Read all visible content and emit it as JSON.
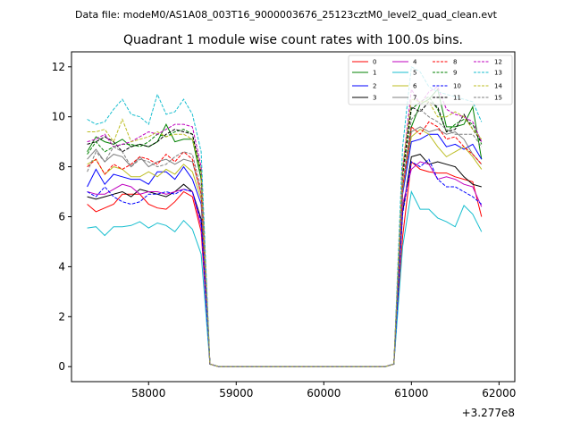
{
  "suptitle": "Data file: modeM0/AS1A08_003T16_9000003676_25123cztM0_level2_quad_clean.evt",
  "chart_data": {
    "type": "line",
    "title": "Quadrant 1 module wise count rates with 100.0s bins.",
    "xlabel": "",
    "ylabel": "",
    "x_offset_label": "+3.277e8",
    "xlim": [
      57120,
      62180
    ],
    "ylim": [
      -0.6,
      12.6
    ],
    "xticks": [
      58000,
      59000,
      60000,
      61000,
      62000
    ],
    "xtick_labels": [
      "58000",
      "59000",
      "60000",
      "61000",
      "62000"
    ],
    "yticks": [
      0,
      2,
      4,
      6,
      8,
      10,
      12
    ],
    "ytick_labels": [
      "0",
      "2",
      "4",
      "6",
      "8",
      "10",
      "12"
    ],
    "grid": false,
    "legend_position": "top-right",
    "x": [
      57300,
      57400,
      57500,
      57600,
      57700,
      57800,
      57900,
      58000,
      58100,
      58200,
      58300,
      58400,
      58500,
      58600,
      58700,
      58800,
      58900,
      59000,
      59100,
      59200,
      59300,
      59400,
      59500,
      59600,
      59700,
      59800,
      59900,
      60000,
      60100,
      60200,
      60300,
      60400,
      60500,
      60600,
      60700,
      60800,
      60900,
      61000,
      61100,
      61200,
      61300,
      61400,
      61500,
      61600,
      61700,
      61800
    ],
    "series": [
      {
        "name": "0",
        "color": "#ff0000",
        "dash": "solid",
        "values": [
          6.5,
          6.2,
          6.35,
          6.5,
          6.9,
          6.9,
          6.9,
          6.5,
          6.35,
          6.3,
          6.6,
          7.0,
          6.8,
          5.4,
          0.1,
          0,
          0,
          0,
          0,
          0,
          0,
          0,
          0,
          0,
          0,
          0,
          0,
          0,
          0,
          0,
          0,
          0,
          0,
          0,
          0,
          0.1,
          5.2,
          8.2,
          7.9,
          7.8,
          7.75,
          7.75,
          7.6,
          7.5,
          7.4,
          6.0
        ]
      },
      {
        "name": "1",
        "color": "#008000",
        "dash": "solid",
        "values": [
          8.6,
          9.2,
          9.0,
          8.9,
          9.1,
          8.8,
          8.9,
          8.8,
          9.0,
          9.7,
          9.0,
          9.1,
          9.1,
          7.5,
          0.1,
          0,
          0,
          0,
          0,
          0,
          0,
          0,
          0,
          0,
          0,
          0,
          0,
          0,
          0,
          0,
          0,
          0,
          0,
          0,
          0,
          0.1,
          7.0,
          9.6,
          10.5,
          10.7,
          11.1,
          9.6,
          9.6,
          9.7,
          10.4,
          8.3
        ]
      },
      {
        "name": "2",
        "color": "#0000ff",
        "dash": "solid",
        "values": [
          7.2,
          7.9,
          7.3,
          7.7,
          7.6,
          7.5,
          7.5,
          7.3,
          7.8,
          7.8,
          7.5,
          8.0,
          7.5,
          6.5,
          0.1,
          0,
          0,
          0,
          0,
          0,
          0,
          0,
          0,
          0,
          0,
          0,
          0,
          0,
          0,
          0,
          0,
          0,
          0,
          0,
          0,
          0.1,
          6.9,
          9.0,
          9.1,
          9.3,
          9.3,
          8.8,
          8.9,
          8.7,
          8.9,
          8.3
        ]
      },
      {
        "name": "3",
        "color": "#000000",
        "dash": "solid",
        "values": [
          6.8,
          6.7,
          6.8,
          6.9,
          7.0,
          6.8,
          7.1,
          7.0,
          6.9,
          6.8,
          7.0,
          7.3,
          7.0,
          5.9,
          0.1,
          0,
          0,
          0,
          0,
          0,
          0,
          0,
          0,
          0,
          0,
          0,
          0,
          0,
          0,
          0,
          0,
          0,
          0,
          0,
          0,
          0.1,
          6.2,
          8.4,
          8.5,
          8.1,
          8.2,
          8.1,
          8.0,
          7.6,
          7.3,
          7.2
        ]
      },
      {
        "name": "4",
        "color": "#bf00bf",
        "dash": "solid",
        "values": [
          7.0,
          6.9,
          6.9,
          7.1,
          7.3,
          7.2,
          6.9,
          7.0,
          7.0,
          6.9,
          7.0,
          7.1,
          7.0,
          5.6,
          0.1,
          0,
          0,
          0,
          0,
          0,
          0,
          0,
          0,
          0,
          0,
          0,
          0,
          0,
          0,
          0,
          0,
          0,
          0,
          0,
          0,
          0.1,
          6.5,
          7.9,
          8.2,
          8.1,
          7.5,
          7.6,
          7.5,
          7.3,
          7.2,
          6.4
        ]
      },
      {
        "name": "5",
        "color": "#17becf",
        "dash": "solid",
        "values": [
          5.55,
          5.6,
          5.25,
          5.6,
          5.6,
          5.65,
          5.8,
          5.55,
          5.75,
          5.65,
          5.4,
          5.85,
          5.5,
          4.5,
          0.1,
          0,
          0,
          0,
          0,
          0,
          0,
          0,
          0,
          0,
          0,
          0,
          0,
          0,
          0,
          0,
          0,
          0,
          0,
          0,
          0,
          0.1,
          4.8,
          7.0,
          6.3,
          6.3,
          5.95,
          5.8,
          5.6,
          6.45,
          6.1,
          5.4
        ]
      },
      {
        "name": "6",
        "color": "#bcbd22",
        "dash": "solid",
        "values": [
          8.1,
          8.3,
          7.7,
          8.0,
          7.9,
          7.6,
          7.6,
          7.8,
          7.6,
          7.9,
          7.7,
          8.1,
          7.8,
          6.7,
          0.1,
          0,
          0,
          0,
          0,
          0,
          0,
          0,
          0,
          0,
          0,
          0,
          0,
          0,
          0,
          0,
          0,
          0,
          0,
          0,
          0,
          0.1,
          7.2,
          9.2,
          9.5,
          9.3,
          8.8,
          8.4,
          8.6,
          8.8,
          8.4,
          7.9
        ]
      },
      {
        "name": "7",
        "color": "#7f7f7f",
        "dash": "solid",
        "values": [
          8.3,
          8.7,
          8.2,
          8.5,
          8.4,
          8.0,
          8.4,
          8.0,
          8.2,
          8.3,
          8.1,
          8.3,
          8.2,
          6.9,
          0.1,
          0,
          0,
          0,
          0,
          0,
          0,
          0,
          0,
          0,
          0,
          0,
          0,
          0,
          0,
          0,
          0,
          0,
          0,
          0,
          0,
          0.1,
          7.0,
          9.4,
          9.6,
          9.4,
          9.5,
          9.3,
          9.4,
          9.1,
          8.5,
          8.1
        ]
      },
      {
        "name": "8",
        "color": "#ff0000",
        "dash": "dashed",
        "values": [
          8.0,
          8.3,
          7.7,
          8.1,
          7.9,
          8.1,
          8.4,
          8.3,
          8.1,
          8.5,
          8.2,
          8.6,
          8.3,
          6.9,
          0.1,
          0,
          0,
          0,
          0,
          0,
          0,
          0,
          0,
          0,
          0,
          0,
          0,
          0,
          0,
          0,
          0,
          0,
          0,
          0,
          0,
          0.1,
          7.2,
          9.6,
          9.3,
          9.8,
          9.6,
          9.1,
          9.2,
          8.8,
          8.5,
          8.1
        ]
      },
      {
        "name": "9",
        "color": "#008000",
        "dash": "dashed",
        "values": [
          8.5,
          9.0,
          8.6,
          8.8,
          8.9,
          8.9,
          8.8,
          9.0,
          9.3,
          9.2,
          9.4,
          9.5,
          9.3,
          7.7,
          0.1,
          0,
          0,
          0,
          0,
          0,
          0,
          0,
          0,
          0,
          0,
          0,
          0,
          0,
          0,
          0,
          0,
          0,
          0,
          0,
          0,
          0.1,
          7.6,
          10.3,
          10.6,
          10.8,
          10.3,
          9.4,
          9.7,
          9.9,
          9.7,
          8.9
        ]
      },
      {
        "name": "10",
        "color": "#0000ff",
        "dash": "dashed",
        "values": [
          7.0,
          6.8,
          7.2,
          6.8,
          6.6,
          6.5,
          6.6,
          6.9,
          6.9,
          7.0,
          6.9,
          7.1,
          7.0,
          5.8,
          0.1,
          0,
          0,
          0,
          0,
          0,
          0,
          0,
          0,
          0,
          0,
          0,
          0,
          0,
          0,
          0,
          0,
          0,
          0,
          0,
          0,
          0.1,
          6.1,
          8.2,
          8.0,
          8.3,
          7.5,
          7.2,
          7.2,
          7.0,
          6.8,
          6.5
        ]
      },
      {
        "name": "11",
        "color": "#000000",
        "dash": "dashed",
        "values": [
          8.9,
          9.0,
          9.2,
          9.0,
          8.6,
          8.8,
          8.9,
          8.8,
          9.0,
          9.3,
          9.5,
          9.4,
          9.3,
          7.8,
          0.1,
          0,
          0,
          0,
          0,
          0,
          0,
          0,
          0,
          0,
          0,
          0,
          0,
          0,
          0,
          0,
          0,
          0,
          0,
          0,
          0,
          0.1,
          7.8,
          10.4,
          10.2,
          10.6,
          10.4,
          9.4,
          9.5,
          10.1,
          9.5,
          9.0
        ]
      },
      {
        "name": "12",
        "color": "#bf00bf",
        "dash": "dashed",
        "values": [
          9.0,
          9.1,
          9.3,
          8.8,
          8.9,
          9.0,
          9.2,
          9.4,
          9.3,
          9.5,
          9.7,
          9.7,
          9.6,
          8.0,
          0.1,
          0,
          0,
          0,
          0,
          0,
          0,
          0,
          0,
          0,
          0,
          0,
          0,
          0,
          0,
          0,
          0,
          0,
          0,
          0,
          0,
          0.1,
          7.9,
          11.1,
          10.5,
          11.0,
          11.2,
          10.3,
          10.1,
          10.0,
          9.8,
          9.0
        ]
      },
      {
        "name": "13",
        "color": "#17becf",
        "dash": "dashed",
        "values": [
          9.9,
          9.7,
          9.8,
          10.3,
          10.7,
          10.1,
          10.0,
          9.7,
          10.9,
          10.1,
          10.2,
          10.7,
          10.1,
          8.6,
          0.1,
          0,
          0,
          0,
          0,
          0,
          0,
          0,
          0,
          0,
          0,
          0,
          0,
          0,
          0,
          0,
          0,
          0,
          0,
          0,
          0,
          0.1,
          8.8,
          12.0,
          11.8,
          11.2,
          11.0,
          10.9,
          10.8,
          10.7,
          10.6,
          9.8
        ]
      },
      {
        "name": "14",
        "color": "#bcbd22",
        "dash": "dashed",
        "values": [
          9.4,
          9.4,
          9.5,
          9.0,
          9.9,
          9.0,
          9.1,
          9.2,
          9.4,
          9.2,
          9.3,
          9.3,
          9.1,
          7.8,
          0.1,
          0,
          0,
          0,
          0,
          0,
          0,
          0,
          0,
          0,
          0,
          0,
          0,
          0,
          0,
          0,
          0,
          0,
          0,
          0,
          0,
          0.1,
          8.0,
          10.7,
          10.6,
          10.6,
          10.0,
          10.0,
          10.2,
          10.0,
          9.5,
          9.1
        ]
      },
      {
        "name": "15",
        "color": "#7f7f7f",
        "dash": "dashed",
        "values": [
          7.8,
          8.6,
          8.2,
          8.8,
          8.6,
          8.0,
          8.3,
          8.2,
          8.0,
          8.1,
          8.4,
          8.6,
          8.5,
          7.1,
          0.1,
          0,
          0,
          0,
          0,
          0,
          0,
          0,
          0,
          0,
          0,
          0,
          0,
          0,
          0,
          0,
          0,
          0,
          0,
          0,
          0,
          0.1,
          7.4,
          9.9,
          10.3,
          10.0,
          9.8,
          9.5,
          9.3,
          9.3,
          9.3,
          8.8
        ]
      }
    ]
  }
}
